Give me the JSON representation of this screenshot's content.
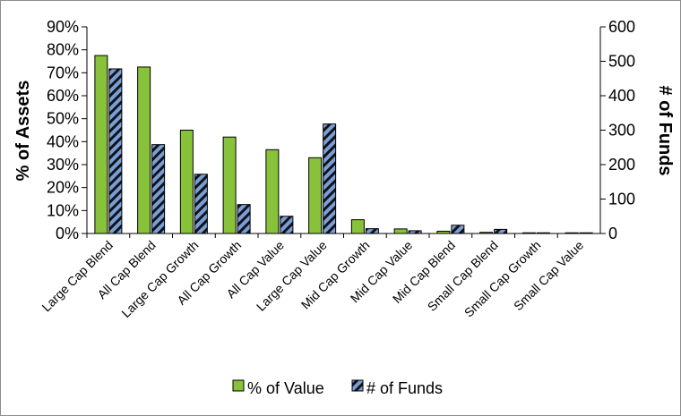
{
  "chart_data": {
    "type": "bar",
    "categories": [
      "Large Cap Blend",
      "All Cap Blend",
      "Large Cap Growth",
      "All Cap Growth",
      "All Cap Value",
      "Large Cap Value",
      "Mid Cap Growth",
      "Mid Cap Value",
      "Mid Cap Blend",
      "Small Cap Blend",
      "Small Cap Growth",
      "Small Cap Value"
    ],
    "series": [
      {
        "name": "% of Value",
        "axis": "left",
        "unit": "%",
        "color": "#88c23a",
        "values": [
          77.5,
          72.5,
          45,
          42,
          36.5,
          33,
          6,
          2,
          1,
          0.5,
          0.3,
          0.3
        ]
      },
      {
        "name": "# of Funds",
        "axis": "right",
        "color": "#7b9fd4",
        "pattern": "diagonal-stripes",
        "values": [
          478,
          258,
          172,
          84,
          50,
          318,
          14,
          8,
          24,
          12,
          2,
          2
        ]
      }
    ],
    "ylabel_left": "% of Assets",
    "ylabel_right": "# of Funds",
    "ylim_left": [
      0,
      90
    ],
    "yticks_left": [
      "0%",
      "10%",
      "20%",
      "30%",
      "40%",
      "50%",
      "60%",
      "70%",
      "80%",
      "90%"
    ],
    "ylim_right": [
      0,
      600
    ],
    "yticks_right": [
      "0",
      "100",
      "200",
      "300",
      "400",
      "500",
      "600"
    ],
    "grid": false,
    "legend_position": "bottom"
  }
}
